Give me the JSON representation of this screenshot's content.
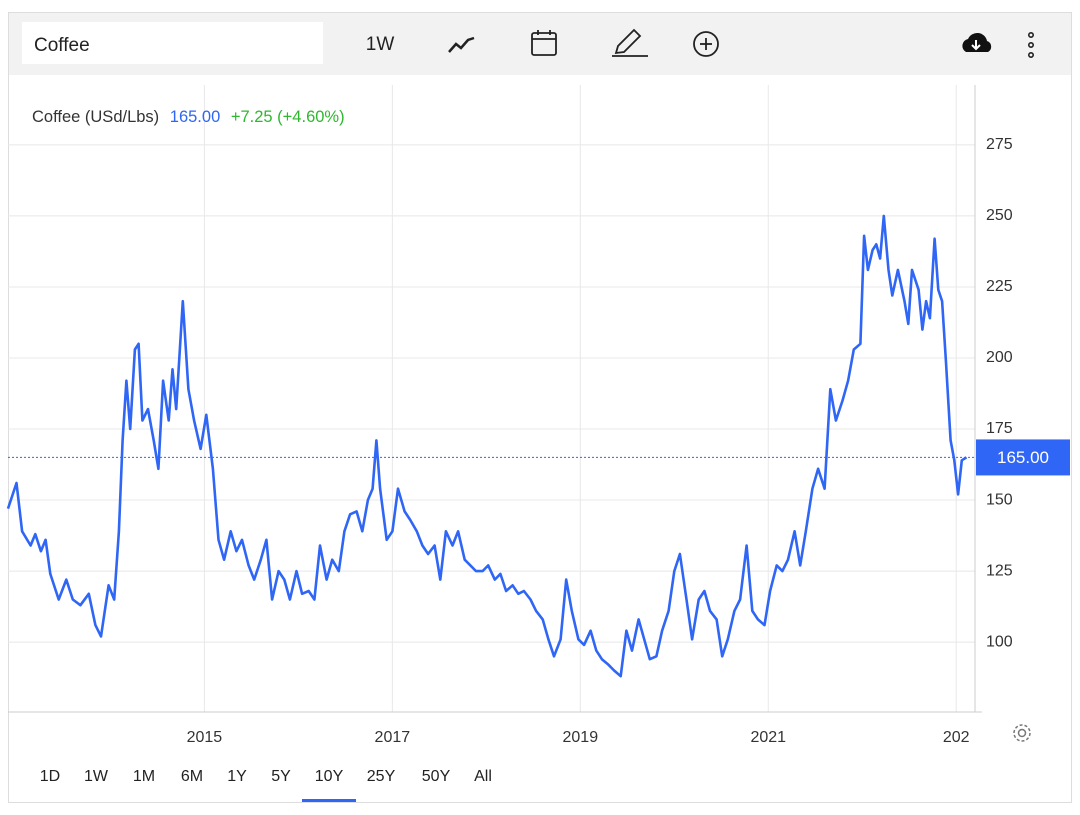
{
  "toolbar": {
    "search": "Coffee",
    "interval": "1W"
  },
  "legend": {
    "change": "+7.25 (+4.60%)"
  },
  "ranges": [
    "1D",
    "1W",
    "1M",
    "6M",
    "1Y",
    "5Y",
    "10Y",
    "25Y",
    "50Y",
    "All"
  ],
  "selected_range": "10Y",
  "chart_data": {
    "type": "line",
    "x": [
      2012.91,
      2013.0,
      2013.06,
      2013.15,
      2013.2,
      2013.26,
      2013.31,
      2013.36,
      2013.45,
      2013.53,
      2013.6,
      2013.68,
      2013.77,
      2013.84,
      2013.9,
      2013.98,
      2014.04,
      2014.09,
      2014.13,
      2014.17,
      2014.21,
      2014.26,
      2014.3,
      2014.34,
      2014.4,
      2014.46,
      2014.51,
      2014.56,
      2014.62,
      2014.66,
      2014.7,
      2014.77,
      2014.83,
      2014.89,
      2014.96,
      2015.02,
      2015.09,
      2015.15,
      2015.21,
      2015.28,
      2015.34,
      2015.4,
      2015.47,
      2015.53,
      2015.6,
      2015.66,
      2015.72,
      2015.79,
      2015.85,
      2015.91,
      2015.98,
      2016.04,
      2016.11,
      2016.17,
      2016.23,
      2016.3,
      2016.36,
      2016.43,
      2016.49,
      2016.55,
      2016.62,
      2016.68,
      2016.74,
      2016.79,
      2016.83,
      2016.87,
      2016.94,
      2017.0,
      2017.06,
      2017.13,
      2017.19,
      2017.26,
      2017.32,
      2017.38,
      2017.45,
      2017.51,
      2017.57,
      2017.64,
      2017.7,
      2017.77,
      2017.83,
      2017.89,
      2017.96,
      2018.02,
      2018.09,
      2018.15,
      2018.21,
      2018.28,
      2018.34,
      2018.4,
      2018.47,
      2018.53,
      2018.6,
      2018.66,
      2018.72,
      2018.79,
      2018.85,
      2018.91,
      2018.98,
      2019.04,
      2019.11,
      2019.17,
      2019.23,
      2019.3,
      2019.36,
      2019.43,
      2019.49,
      2019.55,
      2019.62,
      2019.68,
      2019.74,
      2019.81,
      2019.87,
      2019.94,
      2020.0,
      2020.06,
      2020.13,
      2020.19,
      2020.26,
      2020.32,
      2020.38,
      2020.45,
      2020.51,
      2020.57,
      2020.64,
      2020.7,
      2020.77,
      2020.83,
      2020.89,
      2020.96,
      2021.02,
      2021.09,
      2021.15,
      2021.21,
      2021.28,
      2021.34,
      2021.4,
      2021.47,
      2021.53,
      2021.6,
      2021.66,
      2021.72,
      2021.79,
      2021.85,
      2021.91,
      2021.98,
      2022.02,
      2022.06,
      2022.11,
      2022.15,
      2022.19,
      2022.23,
      2022.28,
      2022.32,
      2022.38,
      2022.45,
      2022.49,
      2022.53,
      2022.6,
      2022.64,
      2022.68,
      2022.72,
      2022.77,
      2022.81,
      2022.85,
      2022.89,
      2022.94,
      2022.98,
      2023.02,
      2023.06,
      2023.11
    ],
    "series": [
      {
        "name": "Coffee (USd/Lbs)",
        "color": "#2f66f5",
        "values": [
          147,
          156,
          139,
          134,
          138,
          132,
          136,
          124,
          115,
          122,
          115,
          113,
          117,
          106,
          102,
          120,
          115,
          139,
          171,
          192,
          175,
          203,
          205,
          178,
          182,
          171,
          161,
          192,
          178,
          196,
          182,
          220,
          189,
          178,
          168,
          180,
          161,
          136,
          129,
          139,
          132,
          136,
          127,
          122,
          129,
          136,
          115,
          125,
          122,
          115,
          125,
          117,
          118,
          115,
          134,
          122,
          129,
          125,
          139,
          145,
          146,
          139,
          150,
          154,
          171,
          154,
          136,
          139,
          154,
          146,
          143,
          139,
          134,
          131,
          134,
          122,
          139,
          134,
          139,
          129,
          127,
          125,
          125,
          127,
          122,
          124,
          118,
          120,
          117,
          118,
          115,
          111,
          108,
          101,
          95,
          101,
          122,
          111,
          101,
          99,
          104,
          97,
          94,
          92,
          90,
          88,
          104,
          97,
          108,
          101,
          94,
          95,
          104,
          111,
          125,
          131,
          115,
          101,
          115,
          118,
          111,
          108,
          95,
          101,
          111,
          115,
          134,
          111,
          108,
          106,
          118,
          127,
          125,
          129,
          139,
          127,
          139,
          154,
          161,
          154,
          189,
          178,
          185,
          192,
          203,
          205,
          243,
          231,
          238,
          240,
          235,
          250,
          231,
          222,
          231,
          220,
          212,
          231,
          224,
          210,
          220,
          214,
          242,
          224,
          220,
          199,
          171,
          164,
          152,
          164,
          165
        ]
      }
    ],
    "last": {
      "value": 165,
      "label": "165.00"
    },
    "xlim": [
      2012.91,
      2023.2
    ],
    "xticks": [
      2015,
      2017,
      2019,
      2021,
      {
        "value": 2023,
        "label": "202"
      }
    ],
    "ylim": [
      75.4,
      299.6
    ],
    "yticks": [
      100,
      125,
      150,
      175,
      200,
      225,
      250,
      275
    ],
    "grid": true
  }
}
